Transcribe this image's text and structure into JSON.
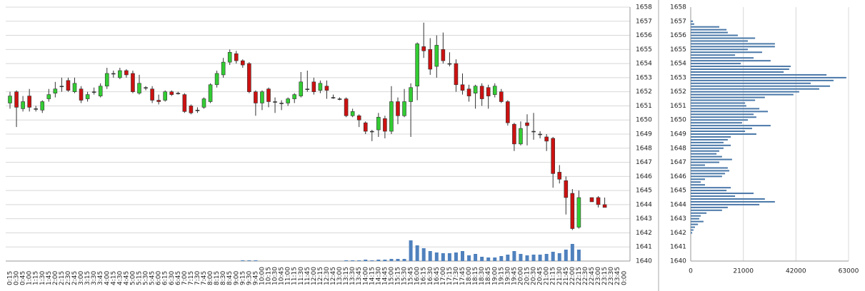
{
  "chart_data": [
    {
      "type": "candlestick",
      "x": [
        "0:15",
        "0:30",
        "0:45",
        "1:00",
        "1:15",
        "1:30",
        "1:45",
        "2:00",
        "2:15",
        "2:30",
        "2:45",
        "3:00",
        "3:15",
        "3:30",
        "3:45",
        "4:00",
        "4:15",
        "4:30",
        "4:45",
        "5:00",
        "5:15",
        "5:30",
        "5:45",
        "6:00",
        "6:15",
        "6:30",
        "6:45",
        "7:00",
        "7:15",
        "7:30",
        "7:45",
        "8:00",
        "8:15",
        "8:30",
        "8:45",
        "9:00",
        "9:15",
        "9:30",
        "9:45",
        "10:00",
        "10:15",
        "10:30",
        "10:45",
        "11:00",
        "11:15",
        "11:30",
        "11:45",
        "12:00",
        "12:15",
        "12:30",
        "12:45",
        "13:00",
        "13:15",
        "13:30",
        "13:45",
        "14:00",
        "14:15",
        "14:30",
        "14:45",
        "15:00",
        "15:15",
        "15:30",
        "15:45",
        "16:00",
        "16:15",
        "16:30",
        "16:45",
        "17:00",
        "17:15",
        "17:30",
        "17:45",
        "18:00",
        "18:15",
        "18:30",
        "18:45",
        "19:00",
        "19:15",
        "19:30",
        "19:45",
        "20:00",
        "20:15",
        "20:30",
        "20:45",
        "21:00",
        "21:15",
        "21:30",
        "21:45",
        "22:00",
        "22:15",
        "22:30",
        "22:45",
        "23:00",
        "23:15",
        "23:30",
        "23:45",
        "0:00"
      ],
      "open": [
        1651.2,
        1652.0,
        1650.8,
        1651.7,
        1650.8,
        1650.7,
        1651.5,
        1651.9,
        1652.4,
        1652.8,
        1652.0,
        1652.2,
        1651.5,
        1652.0,
        1651.7,
        1652.4,
        1653.3,
        1653.0,
        1653.5,
        1653.3,
        1651.9,
        1652.3,
        1652.2,
        1651.4,
        1651.4,
        1652.0,
        1651.9,
        1651.8,
        1651.0,
        1650.7,
        1650.9,
        1651.3,
        1652.5,
        1653.2,
        1654.1,
        1654.7,
        1654.2,
        1654.0,
        1652.0,
        1651.2,
        1652.2,
        1651.3,
        1651.2,
        1651.2,
        1651.5,
        1651.7,
        1652.2,
        1652.7,
        1652.1,
        1652.4,
        1651.6,
        1651.5,
        1651.5,
        1650.3,
        1650.3,
        1649.8,
        1649.2,
        1649.3,
        1650.1,
        1649.2,
        1651.3,
        1650.3,
        1651.3,
        1652.4,
        1655.2,
        1655.0,
        1653.8,
        1655.0,
        1654.0,
        1654.0,
        1652.5,
        1652.2,
        1651.9,
        1652.4,
        1652.3,
        1651.8,
        1652.0,
        1651.3,
        1649.7,
        1648.3,
        1649.8,
        1649.2,
        1649.0,
        1648.8,
        1648.7,
        1646.3,
        1645.7,
        1644.8,
        1642.4,
        null,
        1644.5,
        1644.5,
        1644.0,
        null,
        null,
        null
      ],
      "high": [
        1652.0,
        1652.1,
        1651.7,
        1652.2,
        1651.0,
        1651.4,
        1652.2,
        1652.7,
        1653.0,
        1653.0,
        1653.0,
        1652.4,
        1652.0,
        1652.3,
        1652.6,
        1653.7,
        1653.5,
        1653.7,
        1653.6,
        1653.5,
        1653.2,
        1652.4,
        1652.4,
        1651.8,
        1652.1,
        1652.1,
        1652.0,
        1651.9,
        1651.1,
        1650.9,
        1651.6,
        1652.6,
        1653.5,
        1654.4,
        1655.0,
        1654.9,
        1654.3,
        1654.1,
        1652.1,
        1652.1,
        1652.3,
        1651.6,
        1651.4,
        1651.6,
        1651.9,
        1653.4,
        1653.5,
        1653.0,
        1652.8,
        1652.8,
        1651.8,
        1651.6,
        1651.6,
        1650.8,
        1650.4,
        1649.9,
        1649.3,
        1650.5,
        1650.3,
        1652.4,
        1651.6,
        1652.2,
        1652.6,
        1655.5,
        1656.9,
        1655.8,
        1656.0,
        1656.2,
        1654.8,
        1654.3,
        1653.3,
        1652.5,
        1652.5,
        1652.6,
        1652.5,
        1652.6,
        1652.2,
        1651.4,
        1649.8,
        1649.9,
        1650.4,
        1650.5,
        1649.2,
        1649.0,
        1648.8,
        1646.8,
        1646.0,
        1645.1,
        1645.0,
        null,
        1644.5,
        1644.6,
        1644.5,
        null,
        null,
        null
      ],
      "low": [
        1650.8,
        1649.5,
        1650.6,
        1650.6,
        1650.6,
        1650.5,
        1651.3,
        1651.6,
        1652.0,
        1652.0,
        1651.9,
        1651.2,
        1651.3,
        1651.8,
        1651.6,
        1652.2,
        1653.0,
        1652.9,
        1653.0,
        1651.9,
        1651.8,
        1652.1,
        1651.2,
        1651.1,
        1651.3,
        1651.7,
        1651.8,
        1650.5,
        1650.4,
        1650.5,
        1650.8,
        1651.2,
        1652.3,
        1653.0,
        1653.9,
        1654.0,
        1653.7,
        1651.9,
        1650.3,
        1650.7,
        1650.9,
        1650.5,
        1650.7,
        1651.0,
        1651.2,
        1651.6,
        1652.0,
        1651.8,
        1651.9,
        1651.5,
        1651.5,
        1651.4,
        1650.2,
        1650.2,
        1649.5,
        1649.0,
        1648.5,
        1648.8,
        1648.7,
        1649.0,
        1649.7,
        1650.2,
        1648.8,
        1651.4,
        1654.4,
        1653.2,
        1653.0,
        1654.0,
        1653.8,
        1652.0,
        1651.8,
        1651.3,
        1650.8,
        1651.0,
        1650.8,
        1651.6,
        1651.2,
        1649.6,
        1647.8,
        1648.2,
        1648.2,
        1648.6,
        1648.7,
        1647.8,
        1645.2,
        1645.5,
        1643.3,
        1642.2,
        1642.3,
        null,
        1644.2,
        1643.8,
        1643.8,
        null,
        null,
        null
      ],
      "close": [
        1651.7,
        1650.9,
        1651.3,
        1650.9,
        1650.8,
        1651.3,
        1651.8,
        1652.2,
        1652.4,
        1652.1,
        1652.6,
        1651.4,
        1651.8,
        1652.0,
        1652.4,
        1653.3,
        1653.3,
        1653.5,
        1653.2,
        1652.0,
        1652.6,
        1652.3,
        1651.4,
        1651.3,
        1652.0,
        1651.8,
        1651.9,
        1650.6,
        1650.5,
        1650.7,
        1651.5,
        1652.5,
        1653.3,
        1654.1,
        1654.8,
        1654.2,
        1653.9,
        1652.0,
        1651.2,
        1652.0,
        1651.3,
        1651.3,
        1651.2,
        1651.5,
        1651.8,
        1652.7,
        1652.2,
        1652.0,
        1652.6,
        1652.1,
        1651.6,
        1651.5,
        1650.3,
        1650.6,
        1650.0,
        1649.2,
        1649.2,
        1650.2,
        1649.2,
        1651.3,
        1650.3,
        1651.3,
        1652.3,
        1655.4,
        1654.9,
        1653.6,
        1655.3,
        1654.2,
        1654.0,
        1652.5,
        1652.1,
        1651.7,
        1652.4,
        1651.5,
        1651.7,
        1652.4,
        1651.3,
        1649.8,
        1648.3,
        1649.4,
        1649.6,
        1649.2,
        1649.0,
        1648.5,
        1646.2,
        1645.8,
        1644.5,
        1642.3,
        1644.5,
        null,
        1644.2,
        1644.0,
        1643.8,
        null,
        null,
        null
      ],
      "volume": [
        0,
        0,
        0,
        0,
        0,
        0,
        0,
        0,
        0,
        0,
        0,
        0,
        0,
        0,
        0,
        0,
        0,
        0,
        0,
        0,
        0,
        0,
        0,
        0,
        0,
        0,
        0,
        0,
        0,
        0,
        0,
        0,
        0,
        0,
        0,
        0,
        1,
        1,
        1,
        0,
        0,
        0,
        0,
        0,
        0,
        0,
        0,
        0,
        0,
        0,
        0,
        0,
        1,
        1,
        1,
        2,
        1,
        2,
        2,
        3,
        3,
        3,
        29,
        22,
        18,
        14,
        12,
        11,
        11,
        12,
        14,
        8,
        10,
        6,
        5,
        5,
        7,
        9,
        14,
        10,
        8,
        9,
        9,
        10,
        13,
        11,
        16,
        24,
        16,
        null,
        0,
        0,
        0,
        null,
        null,
        null
      ],
      "ylim": [
        1640,
        1658
      ],
      "yticks": [
        1640,
        1641,
        1642,
        1643,
        1644,
        1645,
        1646,
        1647,
        1648,
        1649,
        1650,
        1651,
        1652,
        1653,
        1654,
        1655,
        1656,
        1657,
        1658
      ],
      "up_color": "#33cc33",
      "down_color": "#cc1111",
      "volume_color": "#4f81bd",
      "grid": true
    },
    {
      "type": "volume_profile",
      "levels": [
        1657.0,
        1656.8,
        1656.6,
        1656.4,
        1656.2,
        1656.0,
        1655.8,
        1655.6,
        1655.4,
        1655.2,
        1655.0,
        1654.8,
        1654.6,
        1654.4,
        1654.2,
        1654.0,
        1653.8,
        1653.6,
        1653.4,
        1653.2,
        1653.0,
        1652.8,
        1652.6,
        1652.4,
        1652.2,
        1652.0,
        1651.8,
        1651.6,
        1651.4,
        1651.2,
        1651.0,
        1650.8,
        1650.6,
        1650.4,
        1650.2,
        1650.0,
        1649.8,
        1649.6,
        1649.4,
        1649.2,
        1649.0,
        1648.8,
        1648.6,
        1648.4,
        1648.2,
        1648.0,
        1647.8,
        1647.6,
        1647.4,
        1647.2,
        1647.0,
        1646.8,
        1646.6,
        1646.4,
        1646.2,
        1646.0,
        1645.8,
        1645.6,
        1645.4,
        1645.2,
        1645.0,
        1644.8,
        1644.6,
        1644.4,
        1644.2,
        1644.0,
        1643.8,
        1643.6,
        1643.4,
        1643.2,
        1643.0,
        1642.8,
        1642.6,
        1642.4,
        1642.2,
        1642.0
      ],
      "values": [
        900,
        1400,
        11400,
        14300,
        14800,
        18800,
        25700,
        22800,
        33600,
        33600,
        22800,
        28500,
        17700,
        25100,
        31900,
        20000,
        39900,
        39300,
        37100,
        54200,
        62100,
        57000,
        47900,
        55600,
        51300,
        43300,
        41000,
        29600,
        25700,
        21700,
        22200,
        27400,
        30800,
        25100,
        26200,
        22800,
        20500,
        31900,
        24500,
        21700,
        26200,
        16000,
        14800,
        13100,
        16000,
        13100,
        11400,
        10300,
        12500,
        16500,
        11400,
        5700,
        14800,
        15400,
        13700,
        12500,
        5700,
        4000,
        5700,
        16000,
        14300,
        25100,
        17700,
        29600,
        33600,
        27400,
        14800,
        12500,
        6300,
        4000,
        3400,
        5100,
        2900,
        1700,
        1100,
        600
      ],
      "xlim": [
        0,
        63000
      ],
      "xticks": [
        0,
        21000,
        42000,
        63000
      ],
      "ylim": [
        1640,
        1658
      ],
      "yticks": [
        1640,
        1641,
        1642,
        1643,
        1644,
        1645,
        1646,
        1647,
        1648,
        1649,
        1650,
        1651,
        1652,
        1653,
        1654,
        1655,
        1656,
        1657,
        1658
      ],
      "color": "#4a78a8",
      "grid": true
    }
  ]
}
